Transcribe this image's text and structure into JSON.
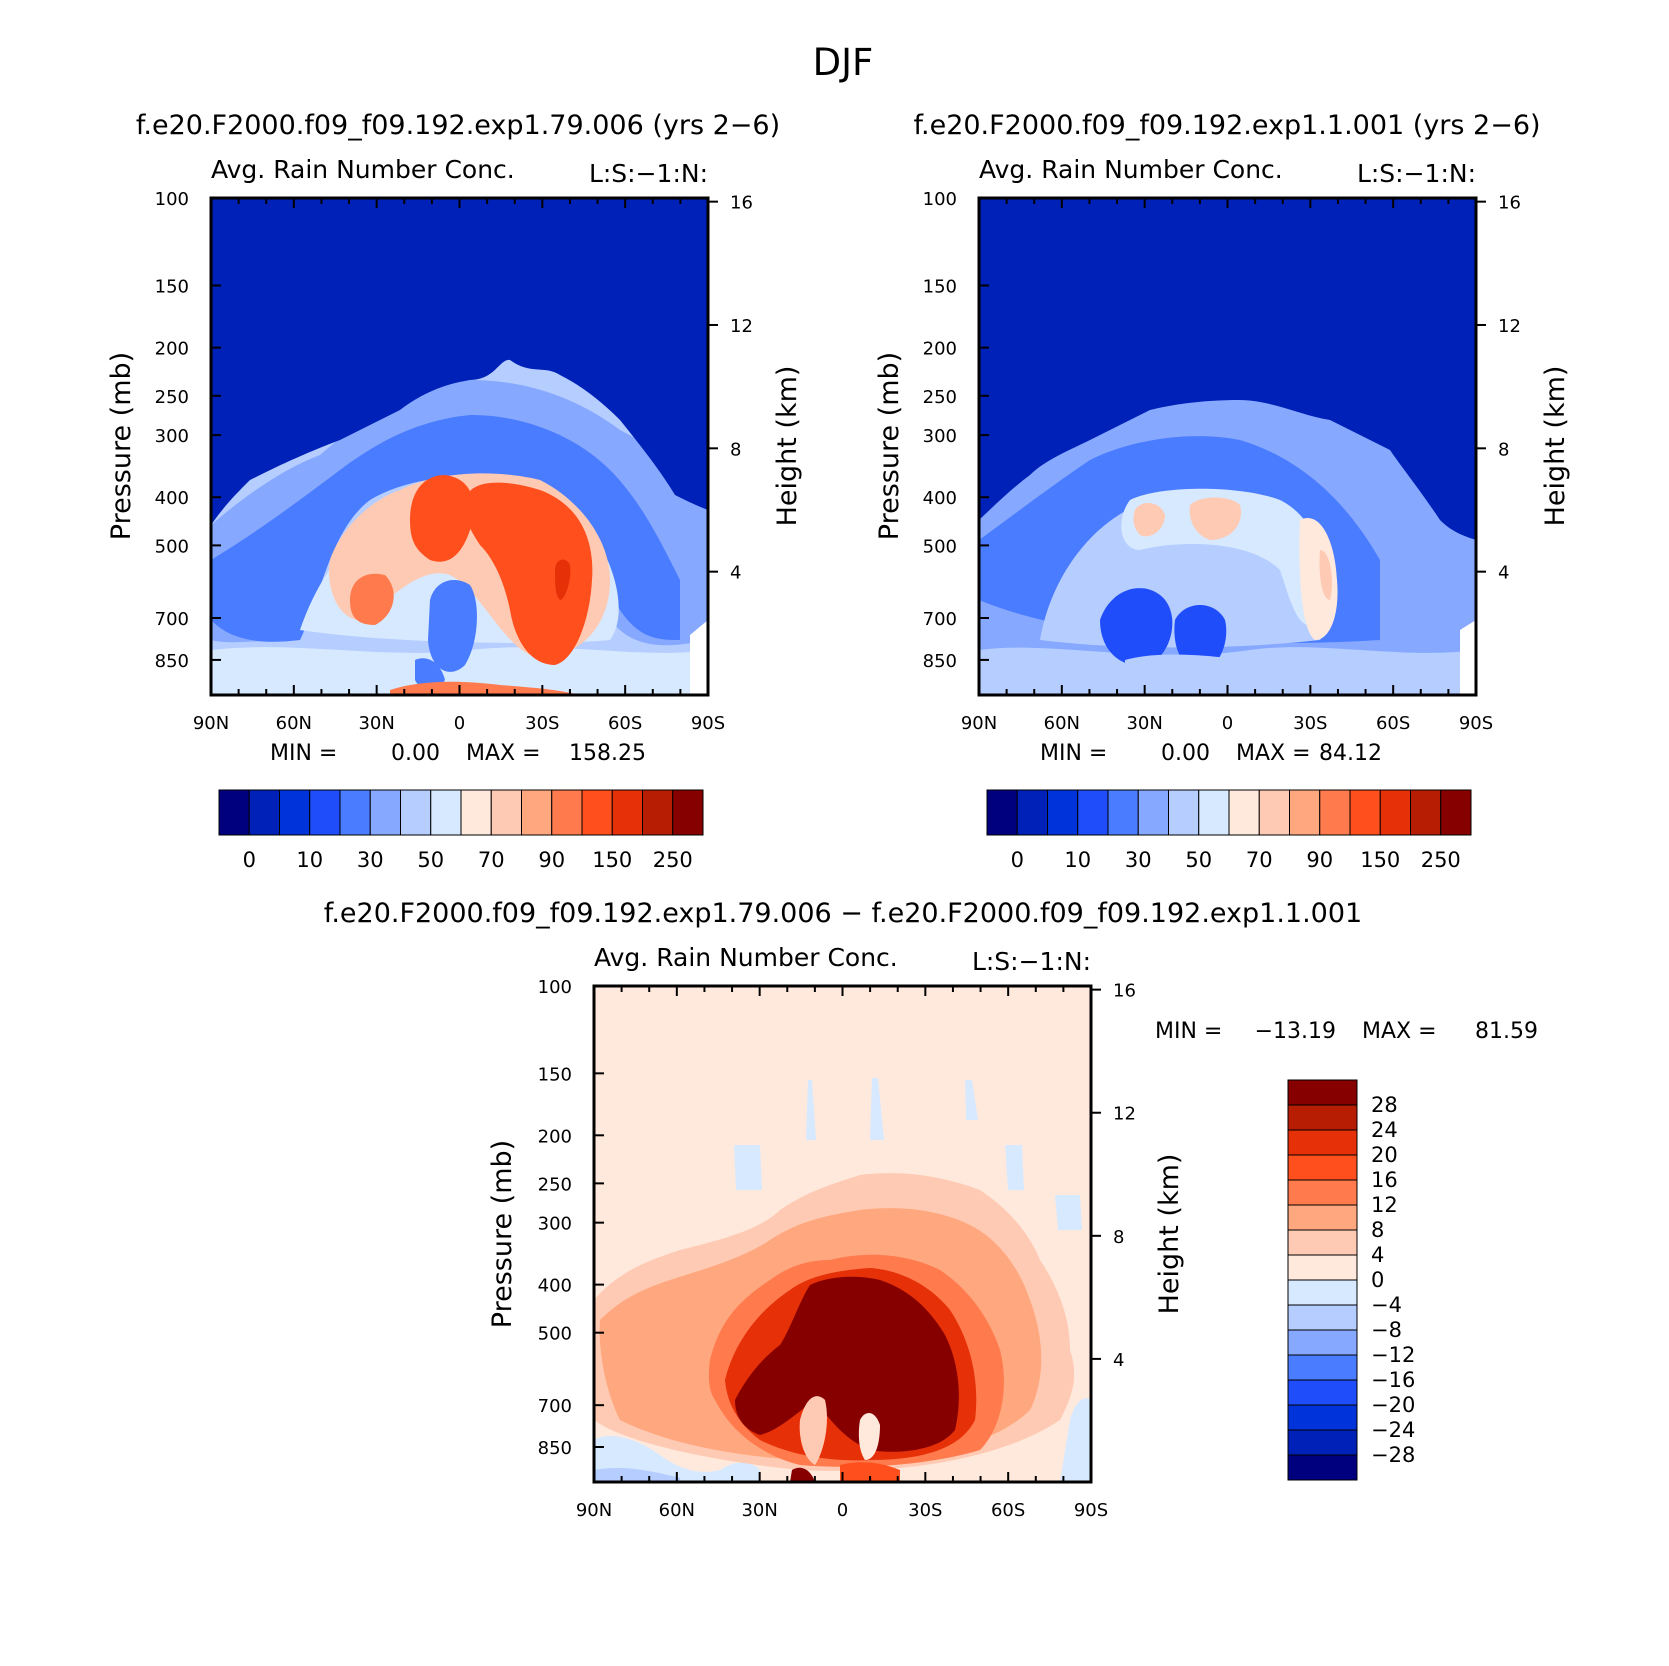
{
  "title": "DJF",
  "panels": [
    {
      "id": "top-left",
      "case_title": "f.e20.F2000.f09_f09.192.exp1.79.006 (yrs 2−6)",
      "var_title": "Avg. Rain Number Conc.",
      "var_level": "L:S:−1:N:",
      "ylabel": "Pressure (mb)",
      "y2label": "Height (km)",
      "min_label": "MIN =",
      "min_value": "0.00",
      "max_label": "MAX =",
      "max_value": "158.25"
    },
    {
      "id": "top-right",
      "case_title": "f.e20.F2000.f09_f09.192.exp1.1.001 (yrs 2−6)",
      "var_title": "Avg. Rain Number Conc.",
      "var_level": "L:S:−1:N:",
      "ylabel": "Pressure (mb)",
      "y2label": "Height (km)",
      "min_label": "MIN =",
      "min_value": "0.00",
      "max_label": "MAX =",
      "max_value": "84.12"
    },
    {
      "id": "bottom",
      "case_title": "f.e20.F2000.f09_f09.192.exp1.79.006 − f.e20.F2000.f09_f09.192.exp1.1.001",
      "var_title": "Avg. Rain Number Conc.",
      "var_level": "L:S:−1:N:",
      "ylabel": "Pressure (mb)",
      "y2label": "Height (km)",
      "min_label": "MIN =",
      "min_value": "−13.19",
      "max_label": "MAX =",
      "max_value": "81.59"
    }
  ],
  "chart_data": [
    {
      "type": "heatmap",
      "panel": "top-left",
      "x_ticks": [
        "90N",
        "60N",
        "30N",
        "0",
        "30S",
        "60S",
        "90S"
      ],
      "x_values": [
        90,
        60,
        30,
        0,
        -30,
        -60,
        -90
      ],
      "y_ticks": [
        "100",
        "150",
        "200",
        "250",
        "300",
        "400",
        "500",
        "700",
        "850"
      ],
      "y_values": [
        100,
        150,
        200,
        250,
        300,
        400,
        500,
        700,
        850
      ],
      "y_scale": "log",
      "ylim": [
        100,
        1000
      ],
      "y2_ticks": [
        "16",
        "12",
        "8",
        "4"
      ],
      "y2_values": [
        16,
        12,
        8,
        4
      ],
      "levels": [
        "0",
        "10",
        "30",
        "50",
        "70",
        "90",
        "150",
        "250"
      ],
      "colors": [
        "#00007f",
        "#0021b8",
        "#0033d9",
        "#1f4dfa",
        "#4a7cff",
        "#86a8ff",
        "#b5cdff",
        "#d7e9ff",
        "#ffe9dc",
        "#ffcab3",
        "#ffa77e",
        "#ff7a4d",
        "#ff4f1d",
        "#e63008",
        "#b71d02",
        "#870000"
      ],
      "min": 0.0,
      "max": 158.25
    },
    {
      "type": "heatmap",
      "panel": "top-right",
      "x_ticks": [
        "90N",
        "60N",
        "30N",
        "0",
        "30S",
        "60S",
        "90S"
      ],
      "x_values": [
        90,
        60,
        30,
        0,
        -30,
        -60,
        -90
      ],
      "y_ticks": [
        "100",
        "150",
        "200",
        "250",
        "300",
        "400",
        "500",
        "700",
        "850"
      ],
      "y_values": [
        100,
        150,
        200,
        250,
        300,
        400,
        500,
        700,
        850
      ],
      "y_scale": "log",
      "ylim": [
        100,
        1000
      ],
      "y2_ticks": [
        "16",
        "12",
        "8",
        "4"
      ],
      "y2_values": [
        16,
        12,
        8,
        4
      ],
      "levels": [
        "0",
        "10",
        "30",
        "50",
        "70",
        "90",
        "150",
        "250"
      ],
      "colors": [
        "#00007f",
        "#0021b8",
        "#0033d9",
        "#1f4dfa",
        "#4a7cff",
        "#86a8ff",
        "#b5cdff",
        "#d7e9ff",
        "#ffe9dc",
        "#ffcab3",
        "#ffa77e",
        "#ff7a4d",
        "#ff4f1d",
        "#e63008",
        "#b71d02",
        "#870000"
      ],
      "min": 0.0,
      "max": 84.12
    },
    {
      "type": "heatmap",
      "panel": "bottom",
      "x_ticks": [
        "90N",
        "60N",
        "30N",
        "0",
        "30S",
        "60S",
        "90S"
      ],
      "x_values": [
        90,
        60,
        30,
        0,
        -30,
        -60,
        -90
      ],
      "y_ticks": [
        "100",
        "150",
        "200",
        "250",
        "300",
        "400",
        "500",
        "700",
        "850"
      ],
      "y_values": [
        100,
        150,
        200,
        250,
        300,
        400,
        500,
        700,
        850
      ],
      "y_scale": "log",
      "ylim": [
        100,
        1000
      ],
      "y2_ticks": [
        "16",
        "12",
        "8",
        "4"
      ],
      "y2_values": [
        16,
        12,
        8,
        4
      ],
      "levels": [
        "28",
        "24",
        "20",
        "16",
        "12",
        "8",
        "4",
        "0",
        "−4",
        "−8",
        "−12",
        "−16",
        "−20",
        "−24",
        "−28"
      ],
      "colors": [
        "#870000",
        "#b71d02",
        "#e63008",
        "#ff4f1d",
        "#ff7a4d",
        "#ffa77e",
        "#ffcab3",
        "#ffe9dc",
        "#d7e9ff",
        "#b5cdff",
        "#86a8ff",
        "#4a7cff",
        "#1f4dfa",
        "#0033d9",
        "#0021b8",
        "#00007f"
      ],
      "min": -13.19,
      "max": 81.59
    }
  ]
}
